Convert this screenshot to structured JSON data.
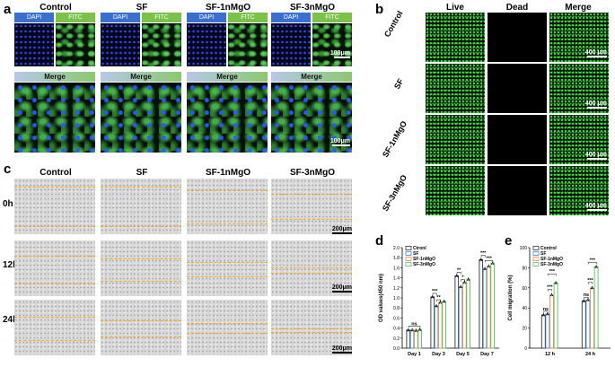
{
  "panel_letters": {
    "a": "a",
    "b": "b",
    "c": "c",
    "d": "d",
    "e": "e"
  },
  "panel_a": {
    "groups": [
      "Control",
      "SF",
      "SF-1nMgO",
      "SF-3nMgO"
    ],
    "channel_dapi": "DAPI",
    "channel_fitc": "FITC",
    "merge_label": "Merge",
    "scale_top": "100μm",
    "scale_bottom": "100μm"
  },
  "panel_b": {
    "columns": [
      "Live",
      "Dead",
      "Merge"
    ],
    "rows": [
      "Control",
      "SF",
      "SF-1nMgO",
      "SF-3nMgO"
    ],
    "scale": "400 μm"
  },
  "panel_c": {
    "groups": [
      "Control",
      "SF",
      "SF-1nMgO",
      "SF-3nMgO"
    ],
    "rows": [
      "0h",
      "12h",
      "24h"
    ],
    "scale": "200μm"
  },
  "colors": {
    "control": "#333333",
    "sf": "#3a8fd8",
    "sf1": "#e88a5a",
    "sf3": "#5cc05c",
    "scratch_line": "#f0a820"
  },
  "chart_data": [
    {
      "type": "bar",
      "panel": "d",
      "categories": [
        "Day 1",
        "Day 3",
        "Day 5",
        "Day 7"
      ],
      "ylabel": "OD values(450 nm)",
      "ylim": [
        0.0,
        2.0
      ],
      "yticks": [
        "0.0",
        "0.2",
        "0.4",
        "0.6",
        "0.8",
        "1.0",
        "1.2",
        "1.4",
        "1.6",
        "1.8",
        "2.0"
      ],
      "legend_position": "top-left",
      "series": [
        {
          "name": "Ctronl",
          "values": [
            0.36,
            1.02,
            1.44,
            1.76
          ]
        },
        {
          "name": "SF",
          "values": [
            0.36,
            0.84,
            1.22,
            1.58
          ]
        },
        {
          "name": "SF-1nMgO",
          "values": [
            0.35,
            0.91,
            1.31,
            1.63
          ]
        },
        {
          "name": "SF-3nMgO",
          "values": [
            0.37,
            0.93,
            1.37,
            1.69
          ]
        }
      ],
      "annotations": [
        "ns",
        "***",
        "**",
        "**",
        "*",
        "***",
        "***"
      ]
    },
    {
      "type": "bar",
      "panel": "e",
      "categories": [
        "12 h",
        "24 h"
      ],
      "ylabel": "Cell migration (%)",
      "ylim": [
        0,
        100
      ],
      "yticks": [
        "0",
        "20",
        "40",
        "60",
        "80",
        "100"
      ],
      "legend_position": "top-left",
      "series": [
        {
          "name": "Control",
          "values": [
            33,
            47
          ]
        },
        {
          "name": "SF",
          "values": [
            34,
            48
          ]
        },
        {
          "name": "SF-1nMgO",
          "values": [
            53,
            60
          ]
        },
        {
          "name": "SF-3nMgO",
          "values": [
            65,
            81
          ]
        }
      ],
      "annotations": [
        "ns",
        "***",
        "***",
        "ns",
        "***",
        "***"
      ]
    }
  ]
}
